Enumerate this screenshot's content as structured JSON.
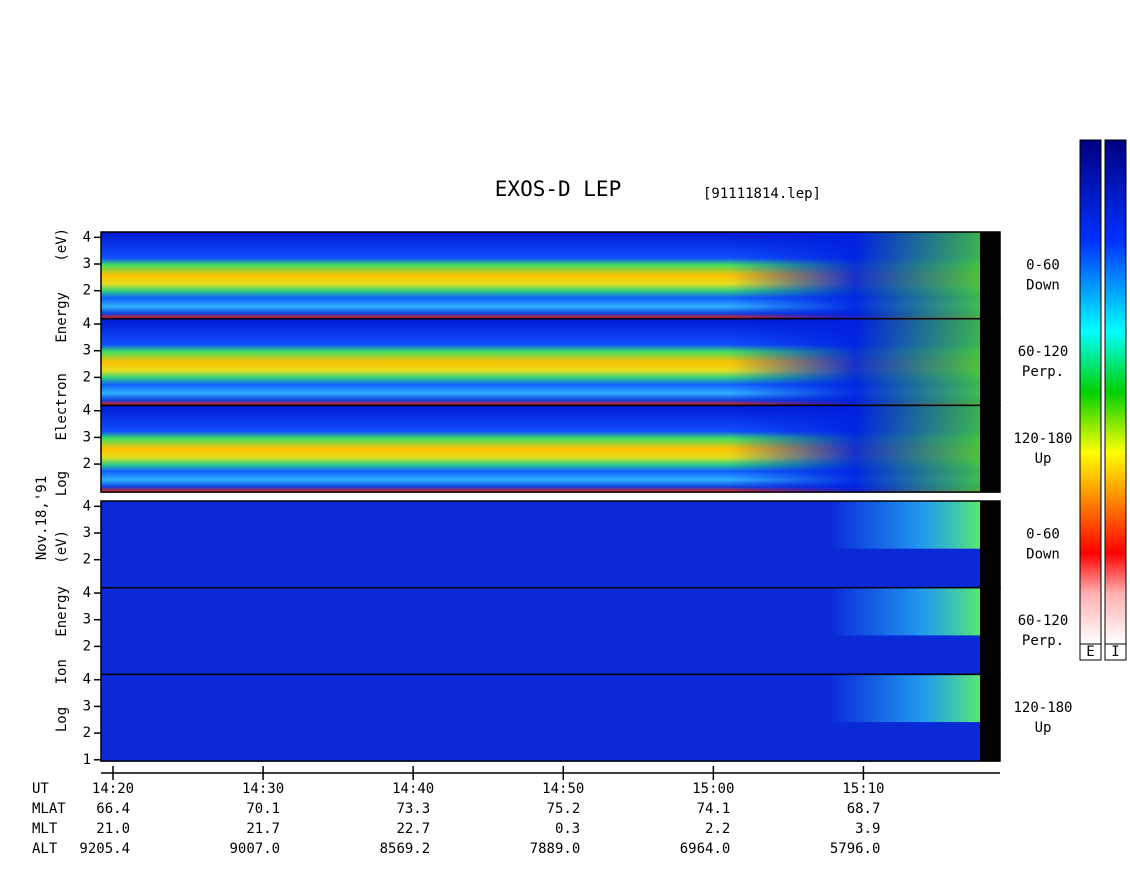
{
  "chart_data": {
    "type": "spectrogram",
    "title": "EXOS-D LEP",
    "file_label": "[91111814.lep]",
    "date_label": "Nov.18,'91",
    "xlim": [
      859.2,
      919.1
    ],
    "xticks": [
      {
        "value": 860,
        "label": "14:20"
      },
      {
        "value": 870,
        "label": "14:30"
      },
      {
        "value": 880,
        "label": "14:40"
      },
      {
        "value": 890,
        "label": "14:50"
      },
      {
        "value": 900,
        "label": "15:00"
      },
      {
        "value": 910,
        "label": "15:10"
      }
    ],
    "groups": [
      {
        "ylabel": "Log Electron Energy (eV)",
        "panels": [
          {
            "pitch": "0-60",
            "direction": "Down",
            "ylim": [
              0.95,
              4.2
            ],
            "yticks": [
              2,
              3,
              4
            ]
          },
          {
            "pitch": "60-120",
            "direction": "Perp.",
            "ylim": [
              0.95,
              4.2
            ],
            "yticks": [
              2,
              3,
              4
            ]
          },
          {
            "pitch": "120-180",
            "direction": "Up",
            "ylim": [
              0.95,
              4.2
            ],
            "yticks": [
              2,
              3,
              4
            ]
          }
        ]
      },
      {
        "ylabel": "Log Ion Energy (eV)",
        "panels": [
          {
            "pitch": "0-60",
            "direction": "Down",
            "ylim": [
              0.95,
              4.2
            ],
            "yticks": [
              2,
              3,
              4
            ]
          },
          {
            "pitch": "60-120",
            "direction": "Perp.",
            "ylim": [
              0.95,
              4.2
            ],
            "yticks": [
              2,
              3,
              4
            ]
          },
          {
            "pitch": "120-180",
            "direction": "Up",
            "ylim": [
              0.95,
              4.2
            ],
            "yticks": [
              1,
              2,
              3,
              4
            ]
          }
        ]
      }
    ],
    "orbit": {
      "ut_label": "UT",
      "rows": [
        {
          "name": "MLAT",
          "values": [
            "66.4",
            "70.1",
            "73.3",
            "75.2",
            "74.1",
            "68.7"
          ]
        },
        {
          "name": "MLT",
          "values": [
            "21.0",
            "21.7",
            "22.7",
            "0.3",
            "2.2",
            "3.9"
          ]
        },
        {
          "name": "ALT",
          "values": [
            "9205.4",
            "9007.0",
            "8569.2",
            "7889.0",
            "6964.0",
            "5796.0"
          ]
        }
      ]
    },
    "colorbars": [
      "E",
      "I"
    ]
  }
}
